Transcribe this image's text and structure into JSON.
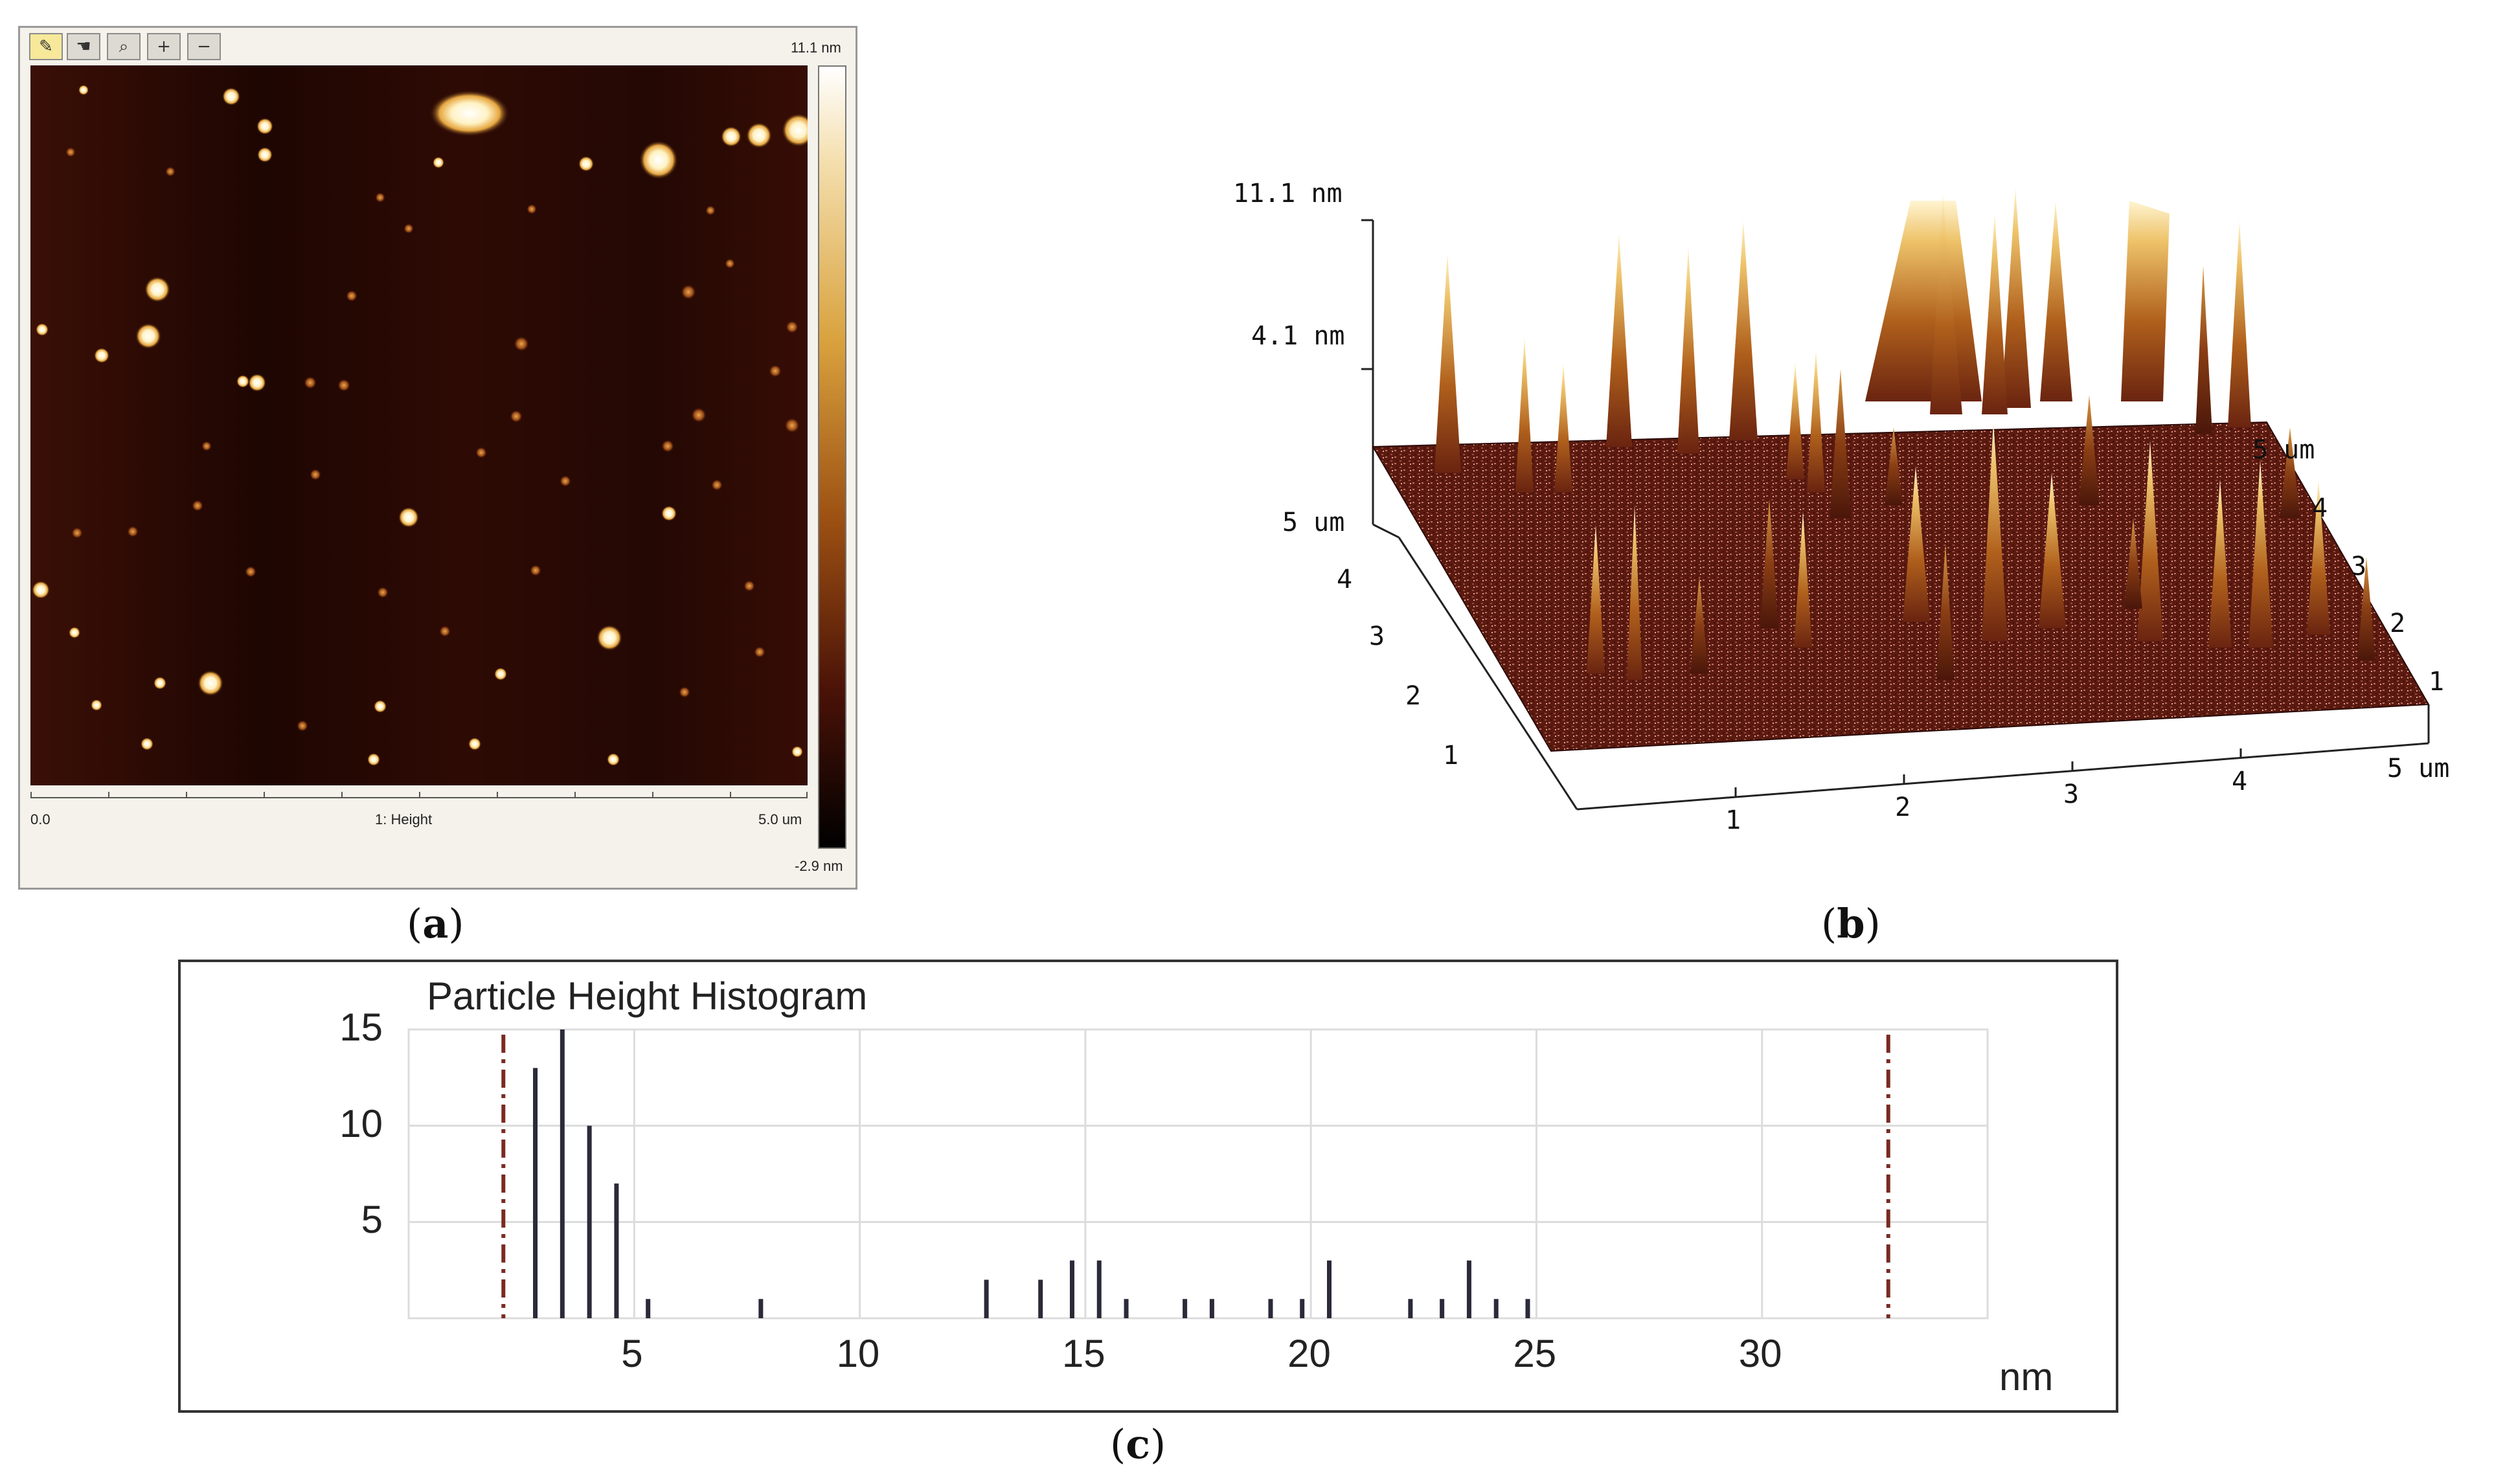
{
  "panel_a": {
    "label": "a",
    "toolbar": [
      {
        "name": "pencil-icon",
        "glyph": "✎"
      },
      {
        "name": "hand-select-icon",
        "glyph": "☚"
      },
      {
        "name": "zoom-icon",
        "glyph": "⌕"
      },
      {
        "name": "zoom-in-icon",
        "glyph": "+"
      },
      {
        "name": "zoom-out-icon",
        "glyph": "−"
      }
    ],
    "colorbar_max": "11.1 nm",
    "colorbar_min": "-2.9 nm",
    "axis_start": "0.0",
    "axis_title": "1: Height",
    "axis_end": "5.0 um",
    "colors": {
      "background": "#2a0904",
      "particle": "#fff2c4"
    }
  },
  "panel_b": {
    "label": "b",
    "z_max": "11.1 nm",
    "z_mid": "4.1 nm",
    "y_front_labels": [
      "5 um",
      "4",
      "3",
      "2",
      "1"
    ],
    "y_back_labels": [
      "5 um",
      "4",
      "3",
      "2",
      "1"
    ],
    "x_labels": [
      "1",
      "2",
      "3",
      "4",
      "5 um"
    ],
    "colors": {
      "surface": "#5a1a10",
      "peak_base": "#8a3a12",
      "peak_top": "#f7e3a8"
    }
  },
  "panel_c": {
    "label": "c",
    "chart_data": {
      "type": "bar",
      "title": "Particle Height Histogram",
      "xlabel": "nm",
      "ylabel": "",
      "xlim": [
        0,
        35
      ],
      "ylim": [
        0,
        15
      ],
      "x_ticks": [
        5,
        10,
        15,
        20,
        25,
        30
      ],
      "y_ticks": [
        5,
        10,
        15
      ],
      "cursor_lines": [
        2.1,
        32.8
      ],
      "bins": [
        {
          "x": 2.8,
          "count": 13
        },
        {
          "x": 3.4,
          "count": 15
        },
        {
          "x": 4.0,
          "count": 10
        },
        {
          "x": 4.6,
          "count": 7
        },
        {
          "x": 5.3,
          "count": 1
        },
        {
          "x": 7.8,
          "count": 1
        },
        {
          "x": 12.8,
          "count": 2
        },
        {
          "x": 14.0,
          "count": 2
        },
        {
          "x": 14.7,
          "count": 3
        },
        {
          "x": 15.3,
          "count": 3
        },
        {
          "x": 15.9,
          "count": 1
        },
        {
          "x": 17.2,
          "count": 1
        },
        {
          "x": 17.8,
          "count": 1
        },
        {
          "x": 19.1,
          "count": 1
        },
        {
          "x": 19.8,
          "count": 1
        },
        {
          "x": 20.4,
          "count": 3
        },
        {
          "x": 22.2,
          "count": 1
        },
        {
          "x": 22.9,
          "count": 1
        },
        {
          "x": 23.5,
          "count": 3
        },
        {
          "x": 24.1,
          "count": 1
        },
        {
          "x": 24.8,
          "count": 1
        }
      ]
    }
  }
}
